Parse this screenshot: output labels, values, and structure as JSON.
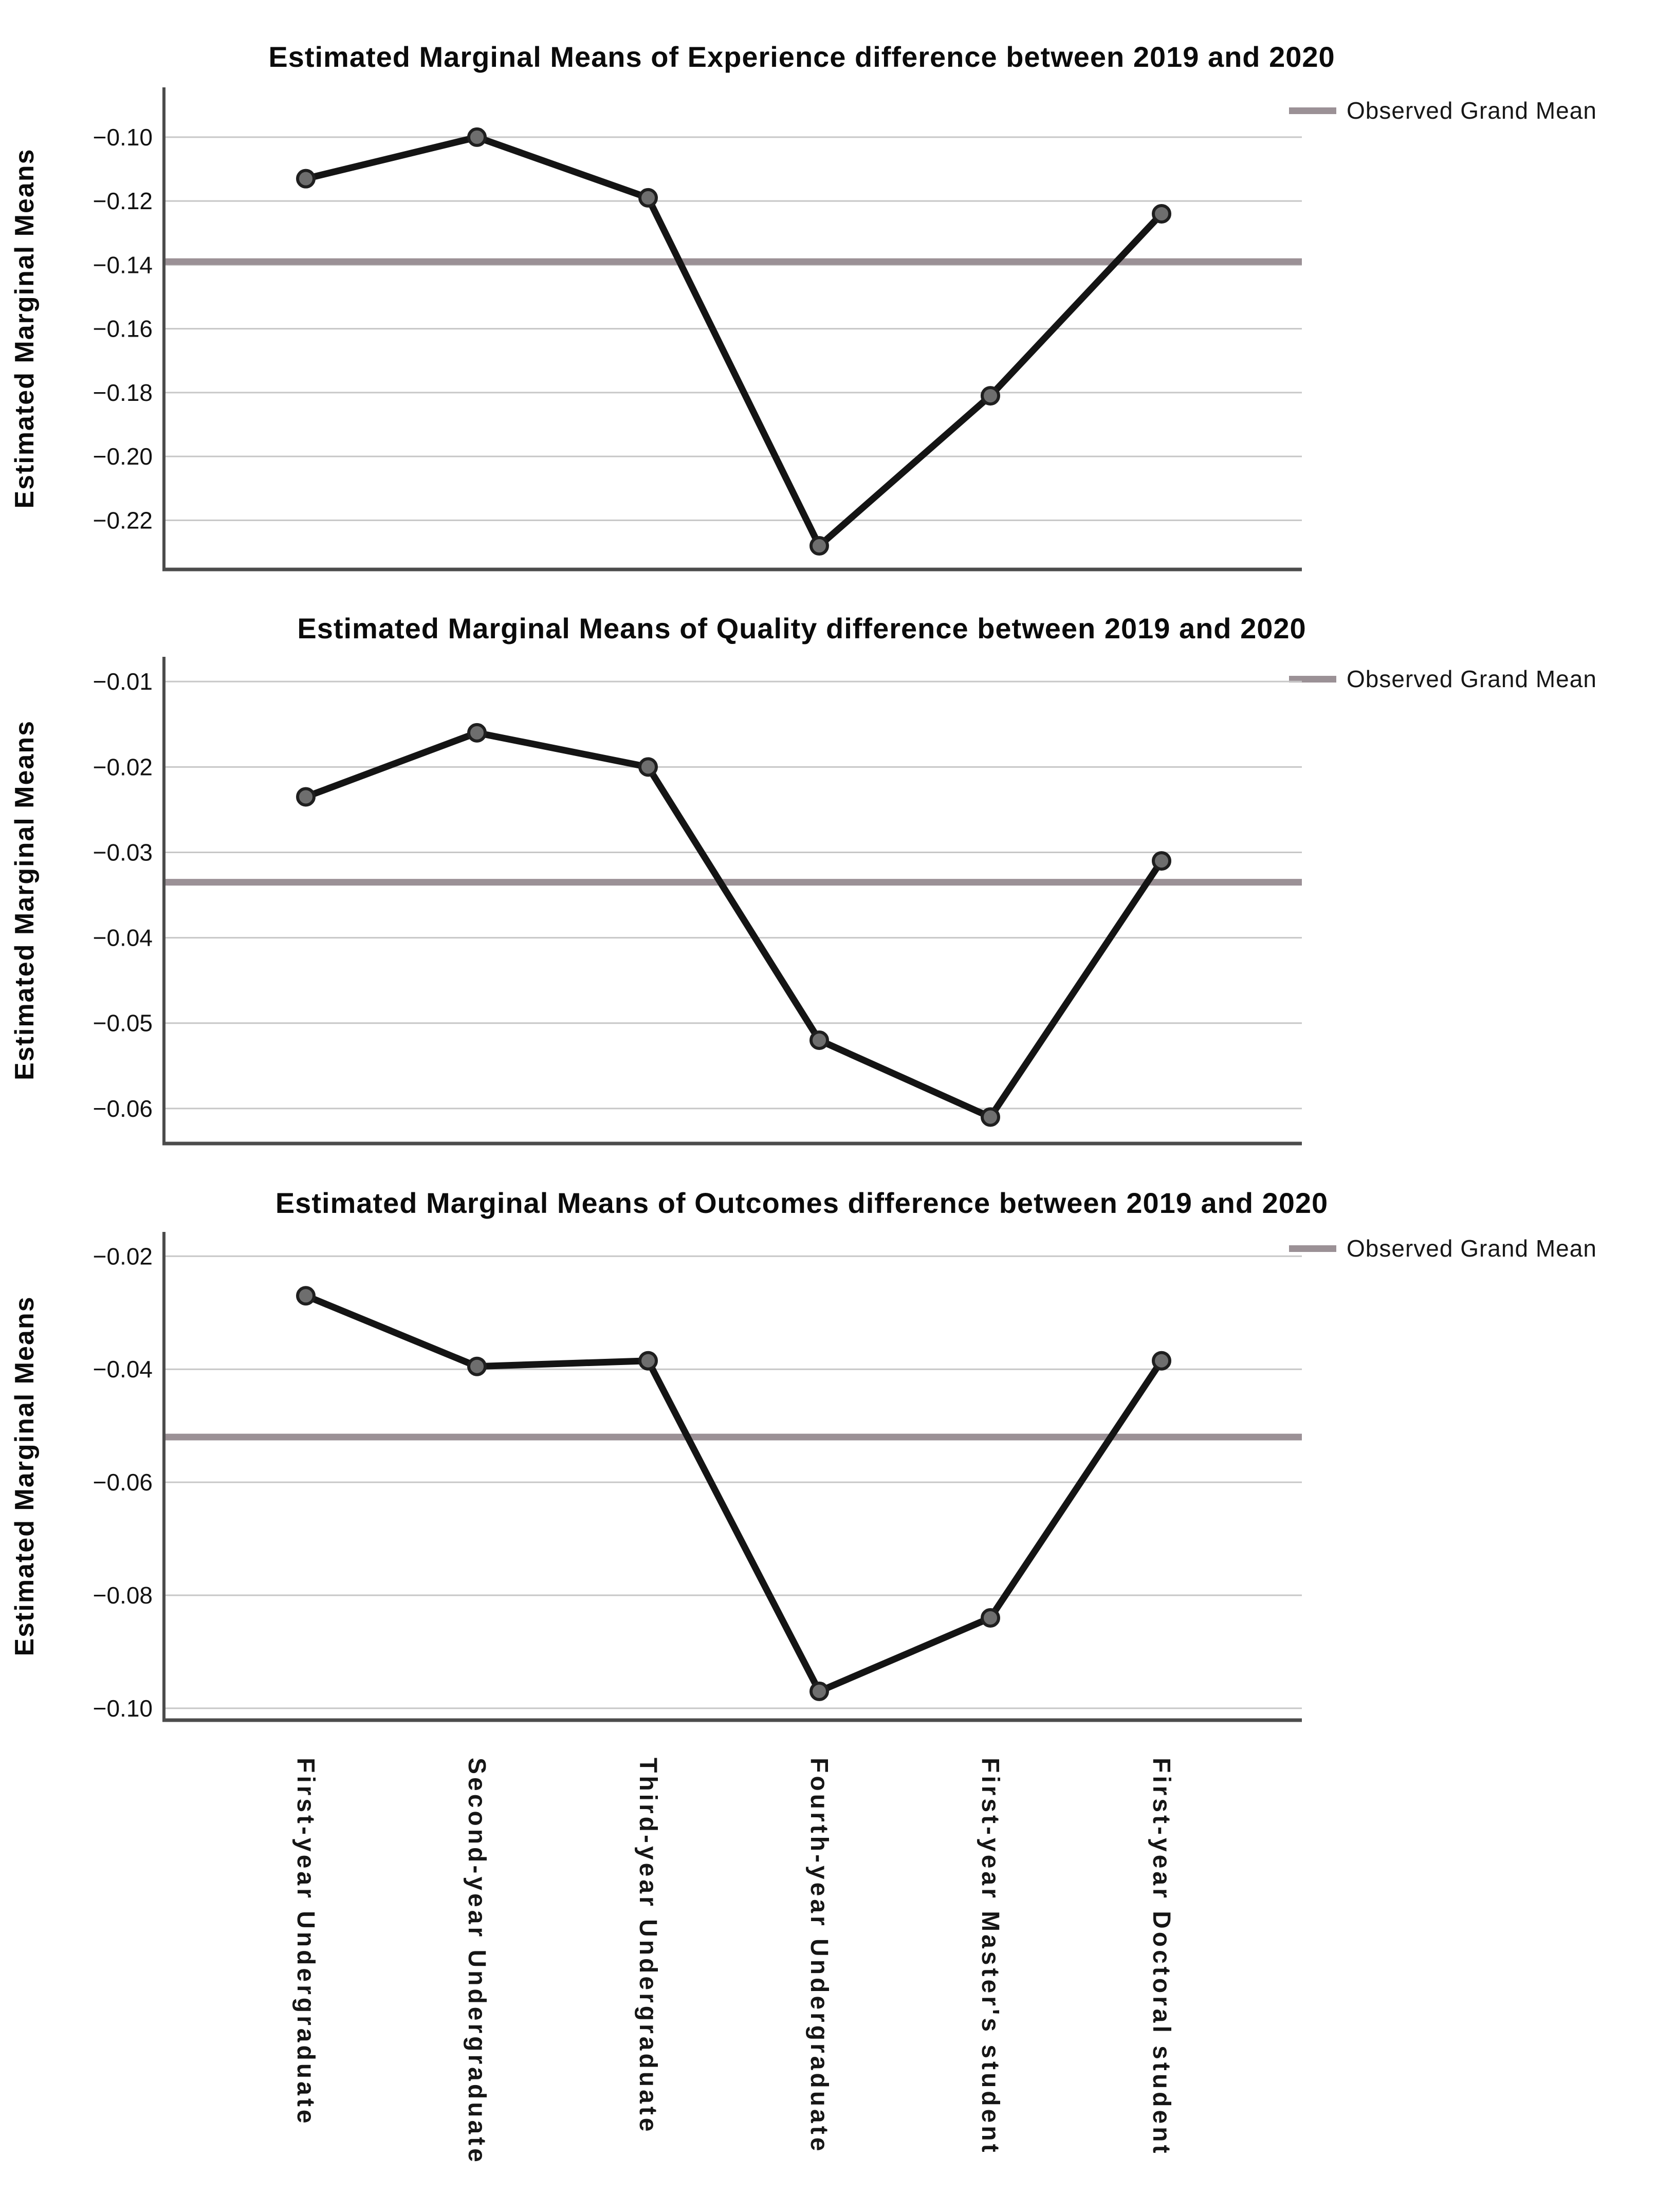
{
  "figure": {
    "y_axis_title": "Estimated Marginal Means",
    "legend_label": "Observed Grand Mean",
    "background": "#ffffff",
    "colors": {
      "series_line": "#141414",
      "marker_fill": "#6e6e6e",
      "marker_stroke": "#1f1f1f",
      "grand_mean_line": "#9b9196",
      "gridline": "#c7c7c7",
      "axis": "#4c4c4c",
      "text": "#121212"
    },
    "categories": [
      "First-year Undergraduate",
      "Second-year Undergraduate",
      "Third-year Undergraduate",
      "Fourth-year Undergraduate",
      "First-year Master's student",
      "First-year Doctoral student"
    ]
  },
  "chart_data": [
    {
      "type": "line",
      "title": "Estimated Marginal Means of Experience difference between 2019 and 2020",
      "xlabel": "",
      "ylabel": "Estimated Marginal Means",
      "legend": [
        "Observed Grand Mean"
      ],
      "legend_position": "top-right",
      "grid": "horizontal",
      "categories": [
        "First-year Undergraduate",
        "Second-year Undergraduate",
        "Third-year Undergraduate",
        "Fourth-year Undergraduate",
        "First-year Master's student",
        "First-year Doctoral student"
      ],
      "values": [
        -0.113,
        -0.1,
        -0.119,
        -0.228,
        -0.181,
        -0.124
      ],
      "grand_mean": -0.139,
      "yticks": [
        -0.1,
        -0.12,
        -0.14,
        -0.16,
        -0.18,
        -0.2,
        -0.22
      ],
      "ylim": [
        -0.2354,
        -0.0844
      ],
      "x_tick_labels_shown": false
    },
    {
      "type": "line",
      "title": "Estimated Marginal Means of Quality difference between 2019 and 2020",
      "xlabel": "",
      "ylabel": "Estimated Marginal Means",
      "legend": [
        "Observed Grand Mean"
      ],
      "legend_position": "top-right",
      "grid": "horizontal",
      "categories": [
        "First-year Undergraduate",
        "Second-year Undergraduate",
        "Third-year Undergraduate",
        "Fourth-year Undergraduate",
        "First-year Master's student",
        "First-year Doctoral student"
      ],
      "values": [
        -0.0235,
        -0.016,
        -0.02,
        -0.052,
        -0.061,
        -0.031
      ],
      "grand_mean": -0.0335,
      "yticks": [
        -0.01,
        -0.02,
        -0.03,
        -0.04,
        -0.05,
        -0.06
      ],
      "ylim": [
        -0.0641,
        -0.0071
      ],
      "x_tick_labels_shown": false
    },
    {
      "type": "line",
      "title": "Estimated Marginal Means of Outcomes difference between 2019 and 2020",
      "xlabel": "",
      "ylabel": "Estimated Marginal Means",
      "legend": [
        "Observed Grand Mean"
      ],
      "legend_position": "top-right",
      "grid": "horizontal",
      "categories": [
        "First-year Undergraduate",
        "Second-year Undergraduate",
        "Third-year Undergraduate",
        "Fourth-year Undergraduate",
        "First-year Master's student",
        "First-year Doctoral student"
      ],
      "values": [
        -0.027,
        -0.0395,
        -0.0385,
        -0.097,
        -0.084,
        -0.0385
      ],
      "grand_mean": -0.052,
      "yticks": [
        -0.02,
        -0.04,
        -0.06,
        -0.08,
        -0.1
      ],
      "ylim": [
        -0.1021,
        -0.0157
      ],
      "x_tick_labels_shown": true
    }
  ]
}
